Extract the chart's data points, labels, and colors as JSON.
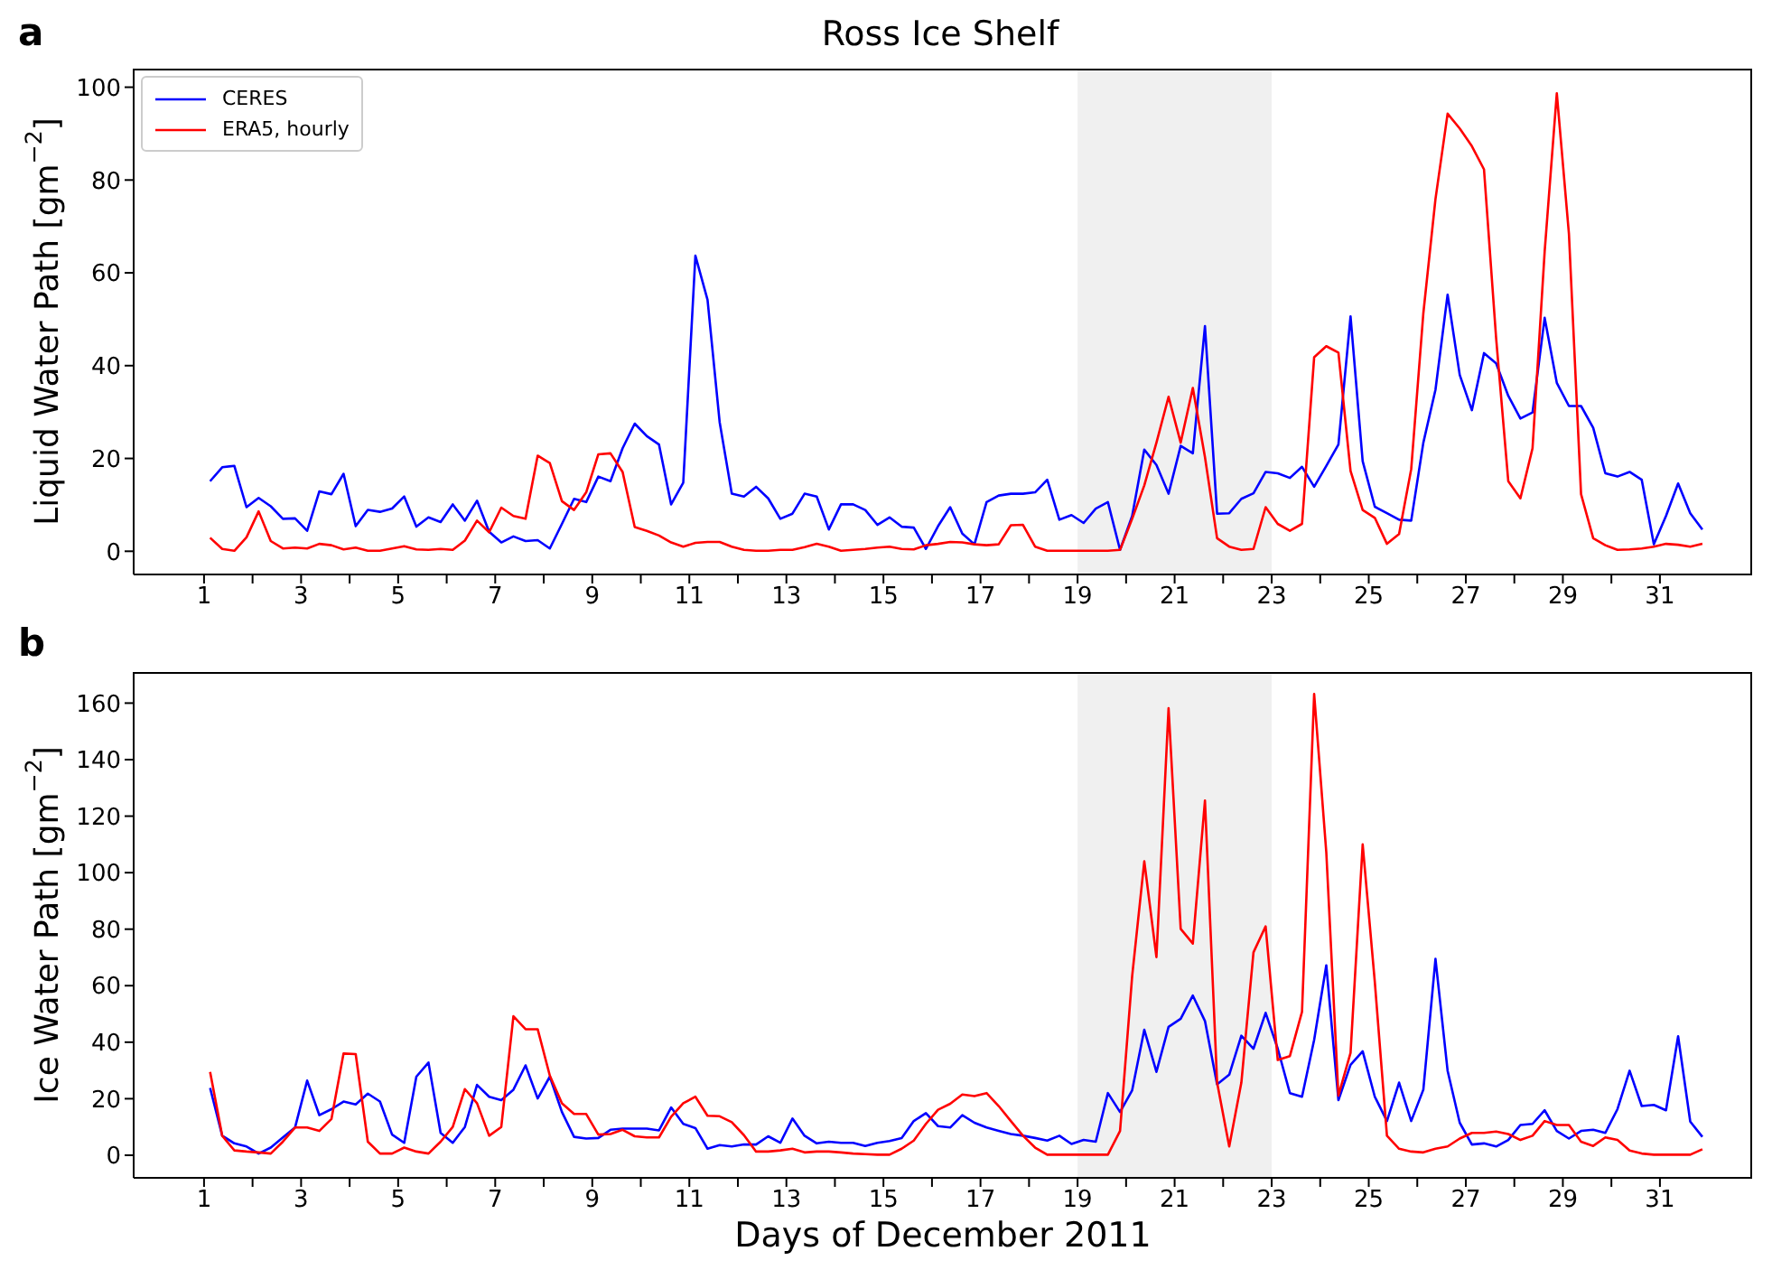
{
  "chart_data": [
    {
      "type": "line",
      "title": "Ross Ice Shelf",
      "annotations": [
        "a"
      ],
      "ylabel": "Liquid Water Path [gm$^{−2}$]",
      "x": [
        1.125,
        1.375,
        1.625,
        1.875,
        2.125,
        2.375,
        2.625,
        2.875,
        3.125,
        3.375,
        3.625,
        3.875,
        4.125,
        4.375,
        4.625,
        4.875,
        5.125,
        5.375,
        5.625,
        5.875,
        6.125,
        6.375,
        6.625,
        6.875,
        7.125,
        7.375,
        7.625,
        7.875,
        8.125,
        8.375,
        8.625,
        8.875,
        9.125,
        9.375,
        9.625,
        9.875,
        10.125,
        10.375,
        10.625,
        10.875,
        11.125,
        11.375,
        11.625,
        11.875,
        12.125,
        12.375,
        12.625,
        12.875,
        13.125,
        13.375,
        13.625,
        13.875,
        14.125,
        14.375,
        14.625,
        14.875,
        15.125,
        15.375,
        15.625,
        15.875,
        16.125,
        16.375,
        16.625,
        16.875,
        17.125,
        17.375,
        17.625,
        17.875,
        18.125,
        18.375,
        18.625,
        18.875,
        19.125,
        19.375,
        19.625,
        19.875,
        20.125,
        20.375,
        20.625,
        20.875,
        21.125,
        21.375,
        21.625,
        21.875,
        22.125,
        22.375,
        22.625,
        22.875,
        23.125,
        23.375,
        23.625,
        23.875,
        24.125,
        24.375,
        24.625,
        24.875,
        25.125,
        25.375,
        25.625,
        25.875,
        26.125,
        26.375,
        26.625,
        26.875,
        27.125,
        27.375,
        27.625,
        27.875,
        28.125,
        28.375,
        28.625,
        28.875,
        29.125,
        29.375,
        29.625,
        29.875,
        30.125,
        30.375,
        30.625,
        30.875,
        31.125,
        31.375,
        31.625,
        31.875
      ],
      "xlim": [
        -0.45,
        32.9
      ],
      "xticks": [
        1,
        {
          "value": 2,
          "label": null
        },
        3,
        {
          "value": 4,
          "label": null
        },
        5,
        {
          "value": 6,
          "label": null
        },
        7,
        {
          "value": 8,
          "label": null
        },
        9,
        {
          "value": 10,
          "label": null
        },
        11,
        {
          "value": 12,
          "label": null
        },
        13,
        {
          "value": 14,
          "label": null
        },
        15,
        {
          "value": 16,
          "label": null
        },
        17,
        {
          "value": 18,
          "label": null
        },
        19,
        {
          "value": 20,
          "label": null
        },
        21,
        {
          "value": 22,
          "label": null
        },
        23,
        {
          "value": 24,
          "label": null
        },
        25,
        {
          "value": 26,
          "label": null
        },
        27,
        {
          "value": 28,
          "label": null
        },
        29,
        {
          "value": 30,
          "label": null
        },
        31
      ],
      "ylim": [
        -5,
        104
      ],
      "yticks": [
        0,
        20,
        40,
        60,
        80,
        100
      ],
      "bands": [
        {
          "axis": "x",
          "from": 19,
          "to": 23,
          "color": "#f0f0f0"
        }
      ],
      "legend": "top left",
      "series": [
        {
          "name": "CERES",
          "color": "#0000ff",
          "values": [
            15.1,
            18.1,
            18.4,
            9.5,
            11.5,
            9.7,
            7.0,
            7.1,
            4.4,
            12.9,
            12.3,
            16.7,
            5.4,
            8.9,
            8.5,
            9.2,
            11.8,
            5.3,
            7.3,
            6.3,
            10.1,
            6.6,
            10.9,
            4.2,
            1.9,
            3.2,
            2.2,
            2.4,
            0.6,
            5.9,
            11.3,
            10.6,
            16.1,
            15.1,
            22.2,
            27.5,
            24.8,
            23.0,
            10.1,
            14.8,
            63.7,
            54.2,
            27.8,
            12.4,
            11.8,
            13.9,
            11.4,
            7.0,
            8.1,
            12.4,
            11.8,
            4.7,
            10.1,
            10.1,
            8.9,
            5.7,
            7.3,
            5.3,
            5.1,
            0.5,
            5.4,
            9.5,
            3.8,
            1.5,
            10.6,
            12.0,
            12.4,
            12.4,
            12.7,
            15.4,
            6.8,
            7.8,
            6.1,
            9.2,
            10.6,
            0.3,
            7.6,
            21.9,
            18.6,
            12.4,
            22.7,
            21.1,
            48.5,
            8.1,
            8.2,
            11.3,
            12.5,
            17.1,
            16.8,
            15.8,
            18.2,
            13.9,
            18.4,
            23.0,
            50.6,
            19.4,
            9.6,
            8.2,
            6.8,
            6.6,
            23.4,
            34.8,
            55.3,
            38.0,
            30.4,
            42.7,
            40.5,
            33.5,
            28.6,
            29.9,
            50.3,
            36.3,
            31.3,
            31.3,
            26.6,
            16.8,
            16.1,
            17.1,
            15.4,
            1.5,
            7.6,
            14.6,
            8.2,
            4.7
          ]
        },
        {
          "name": "ERA5, hourly",
          "color": "#ff0000",
          "values": [
            2.9,
            0.5,
            0.1,
            3.0,
            8.6,
            2.2,
            0.6,
            0.8,
            0.6,
            1.6,
            1.3,
            0.4,
            0.8,
            0.1,
            0.1,
            0.6,
            1.1,
            0.4,
            0.3,
            0.5,
            0.3,
            2.3,
            6.6,
            4.1,
            9.4,
            7.6,
            7.0,
            20.6,
            19.0,
            10.8,
            8.9,
            12.7,
            20.9,
            21.1,
            17.1,
            5.2,
            4.4,
            3.4,
            1.9,
            1.0,
            1.8,
            2.0,
            2.0,
            1.0,
            0.3,
            0.1,
            0.1,
            0.3,
            0.3,
            0.9,
            1.6,
            1.0,
            0.1,
            0.3,
            0.5,
            0.8,
            1.0,
            0.5,
            0.4,
            1.3,
            1.6,
            2.0,
            1.9,
            1.5,
            1.3,
            1.5,
            5.6,
            5.7,
            1.0,
            0.1,
            0.1,
            0.1,
            0.1,
            0.1,
            0.1,
            0.3,
            7.0,
            14.2,
            23.4,
            33.3,
            23.4,
            35.2,
            20.3,
            2.8,
            1.0,
            0.3,
            0.5,
            9.5,
            5.9,
            4.4,
            5.9,
            41.8,
            44.2,
            42.8,
            17.3,
            8.9,
            7.2,
            1.6,
            3.7,
            17.7,
            51.3,
            75.9,
            94.3,
            91.1,
            87.3,
            82.3,
            45.9,
            15.1,
            11.4,
            22.2,
            64.6,
            98.7,
            68.4,
            12.3,
            2.8,
            1.3,
            0.3,
            0.4,
            0.6,
            1.0,
            1.6,
            1.4,
            1.0,
            1.6
          ]
        }
      ]
    },
    {
      "type": "line",
      "annotations": [
        "b"
      ],
      "ylabel": "Ice Water Path [gm$^{−2}$]",
      "xlabel": "Days of December 2011",
      "x": [
        1.125,
        1.375,
        1.625,
        1.875,
        2.125,
        2.375,
        2.625,
        2.875,
        3.125,
        3.375,
        3.625,
        3.875,
        4.125,
        4.375,
        4.625,
        4.875,
        5.125,
        5.375,
        5.625,
        5.875,
        6.125,
        6.375,
        6.625,
        6.875,
        7.125,
        7.375,
        7.625,
        7.875,
        8.125,
        8.375,
        8.625,
        8.875,
        9.125,
        9.375,
        9.625,
        9.875,
        10.125,
        10.375,
        10.625,
        10.875,
        11.125,
        11.375,
        11.625,
        11.875,
        12.125,
        12.375,
        12.625,
        12.875,
        13.125,
        13.375,
        13.625,
        13.875,
        14.125,
        14.375,
        14.625,
        14.875,
        15.125,
        15.375,
        15.625,
        15.875,
        16.125,
        16.375,
        16.625,
        16.875,
        17.125,
        17.375,
        17.625,
        17.875,
        18.125,
        18.375,
        18.625,
        18.875,
        19.125,
        19.375,
        19.625,
        19.875,
        20.125,
        20.375,
        20.625,
        20.875,
        21.125,
        21.375,
        21.625,
        21.875,
        22.125,
        22.375,
        22.625,
        22.875,
        23.125,
        23.375,
        23.625,
        23.875,
        24.125,
        24.375,
        24.625,
        24.875,
        25.125,
        25.375,
        25.625,
        25.875,
        26.125,
        26.375,
        26.625,
        26.875,
        27.125,
        27.375,
        27.625,
        27.875,
        28.125,
        28.375,
        28.625,
        28.875,
        29.125,
        29.375,
        29.625,
        29.875,
        30.125,
        30.375,
        30.625,
        30.875,
        31.125,
        31.375,
        31.625,
        31.875
      ],
      "xlim": [
        -0.45,
        32.9
      ],
      "xticks": [
        1,
        {
          "value": 2,
          "label": null
        },
        3,
        {
          "value": 4,
          "label": null
        },
        5,
        {
          "value": 6,
          "label": null
        },
        7,
        {
          "value": 8,
          "label": null
        },
        9,
        {
          "value": 10,
          "label": null
        },
        11,
        {
          "value": 12,
          "label": null
        },
        13,
        {
          "value": 14,
          "label": null
        },
        15,
        {
          "value": 16,
          "label": null
        },
        17,
        {
          "value": 18,
          "label": null
        },
        19,
        {
          "value": 20,
          "label": null
        },
        21,
        {
          "value": 22,
          "label": null
        },
        23,
        {
          "value": 24,
          "label": null
        },
        25,
        {
          "value": 26,
          "label": null
        },
        27,
        {
          "value": 28,
          "label": null
        },
        29,
        {
          "value": 30,
          "label": null
        },
        31
      ],
      "ylim": [
        -8,
        171
      ],
      "yticks": [
        0,
        20,
        40,
        60,
        80,
        100,
        120,
        140,
        160
      ],
      "bands": [
        {
          "axis": "x",
          "from": 19,
          "to": 23,
          "color": "#f0f0f0"
        }
      ],
      "series": [
        {
          "color": "#0000ff",
          "values": [
            23.8,
            6.9,
            4.2,
            3.1,
            0.6,
            2.7,
            6.3,
            9.8,
            26.4,
            14.2,
            16.3,
            19.0,
            18.0,
            21.8,
            19.0,
            7.3,
            4.4,
            27.8,
            32.8,
            7.9,
            4.4,
            10.0,
            24.9,
            20.7,
            19.5,
            23.2,
            31.8,
            20.1,
            27.8,
            15.3,
            6.5,
            5.9,
            6.1,
            9.0,
            9.4,
            9.4,
            9.4,
            8.8,
            16.9,
            11.1,
            9.6,
            2.3,
            3.6,
            3.1,
            3.8,
            3.8,
            6.7,
            4.4,
            13.0,
            6.9,
            4.2,
            4.8,
            4.4,
            4.4,
            3.3,
            4.4,
            5.0,
            6.1,
            12.1,
            14.9,
            10.3,
            9.8,
            14.2,
            11.5,
            9.8,
            8.6,
            7.5,
            6.9,
            6.1,
            5.2,
            6.9,
            4.0,
            5.4,
            4.8,
            22.0,
            15.3,
            23.0,
            44.4,
            29.5,
            45.4,
            48.3,
            56.5,
            47.5,
            25.1,
            28.5,
            42.3,
            37.7,
            50.4,
            37.7,
            22.0,
            20.7,
            40.8,
            67.2,
            19.5,
            32.0,
            36.8,
            20.7,
            12.1,
            25.7,
            12.1,
            23.2,
            69.5,
            29.9,
            11.5,
            3.8,
            4.2,
            3.1,
            5.4,
            10.7,
            11.1,
            15.9,
            8.6,
            5.9,
            8.6,
            9.0,
            7.9,
            16.3,
            29.9,
            17.4,
            17.8,
            15.9,
            42.1,
            11.9,
            6.5
          ]
        },
        {
          "color": "#ff0000",
          "values": [
            29.5,
            6.9,
            1.7,
            1.3,
            1.0,
            0.6,
            4.8,
            9.8,
            9.8,
            8.6,
            12.8,
            36.0,
            35.8,
            4.8,
            0.6,
            0.6,
            2.7,
            1.3,
            0.6,
            4.8,
            10.0,
            23.4,
            18.4,
            6.9,
            10.0,
            49.2,
            44.6,
            44.6,
            28.2,
            18.4,
            14.6,
            14.6,
            7.3,
            7.5,
            9.0,
            6.7,
            6.3,
            6.3,
            13.6,
            18.4,
            20.7,
            14.0,
            13.8,
            11.7,
            7.1,
            1.3,
            1.3,
            1.7,
            2.3,
            1.0,
            1.3,
            1.3,
            1.0,
            0.6,
            0.4,
            0.2,
            0.2,
            2.3,
            5.2,
            11.1,
            16.1,
            18.2,
            21.5,
            20.9,
            22.0,
            17.4,
            12.1,
            6.9,
            2.7,
            0.2,
            0.2,
            0.2,
            0.2,
            0.2,
            0.2,
            8.6,
            63.4,
            104.0,
            70.1,
            158.2,
            80.1,
            74.9,
            125.5,
            25.7,
            3.1,
            25.7,
            71.8,
            81.0,
            33.7,
            35.1,
            50.8,
            163.2,
            107.3,
            21.1,
            36.2,
            110.0,
            61.3,
            6.9,
            2.3,
            1.3,
            1.0,
            2.3,
            3.1,
            5.9,
            7.9,
            7.9,
            8.4,
            7.5,
            5.4,
            6.9,
            12.1,
            10.7,
            10.7,
            4.8,
            3.3,
            6.3,
            5.4,
            1.7,
            0.6,
            0.2,
            0.2,
            0.2,
            0.2,
            2.1
          ]
        }
      ]
    }
  ]
}
